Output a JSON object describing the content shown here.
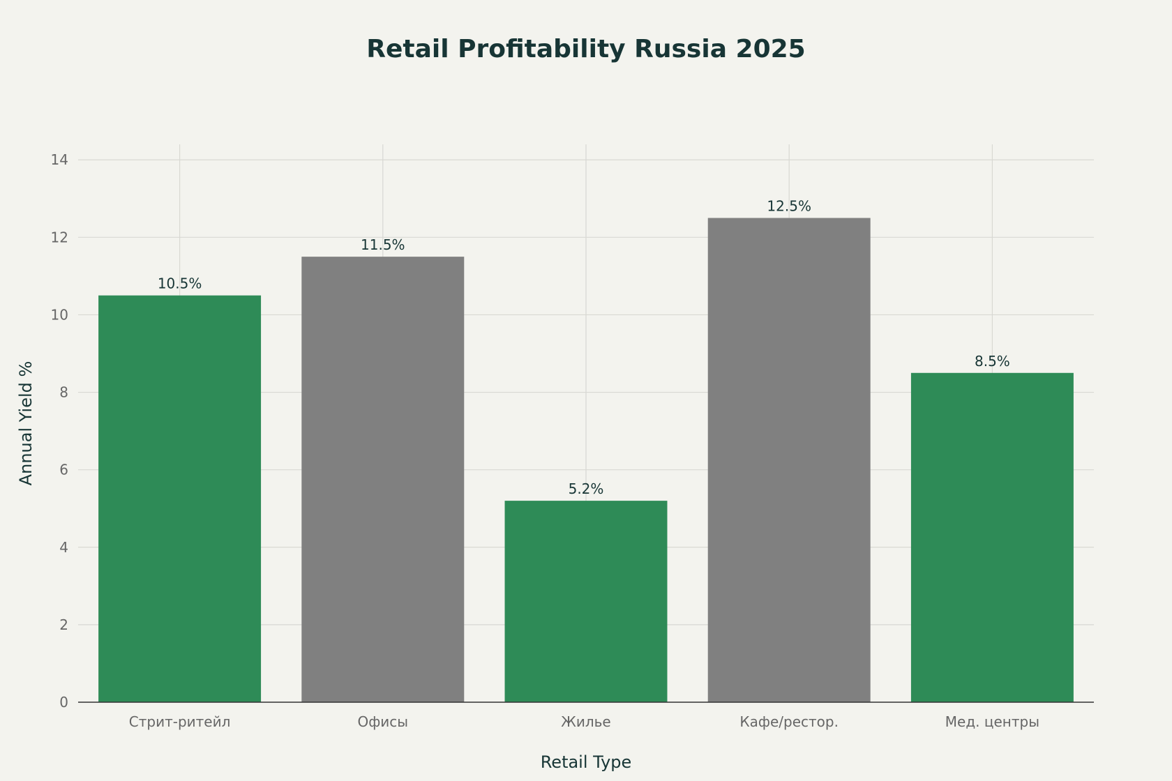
{
  "chart_data": {
    "type": "bar",
    "title": "Retail Profitability Russia 2025",
    "xlabel": "Retail Type",
    "ylabel": "Annual Yield %",
    "categories": [
      "Стрит-ритейл",
      "Офисы",
      "Жилье",
      "Кафе/рестор.",
      "Мед. центры"
    ],
    "values": [
      10.5,
      11.5,
      5.2,
      12.5,
      8.5
    ],
    "value_labels": [
      "10.5%",
      "11.5%",
      "5.2%",
      "12.5%",
      "8.5%"
    ],
    "bar_colors": [
      "#2e8b57",
      "#808080",
      "#2e8b57",
      "#808080",
      "#2e8b57"
    ],
    "ylim": [
      0,
      14.4
    ],
    "yticks": [
      0,
      2,
      4,
      6,
      8,
      10,
      12,
      14
    ],
    "grid": true,
    "legend": "none"
  },
  "colors": {
    "background": "#f3f3ee",
    "text": "#173535",
    "tick_text": "#666666",
    "green": "#2e8b57",
    "gray": "#808080"
  }
}
